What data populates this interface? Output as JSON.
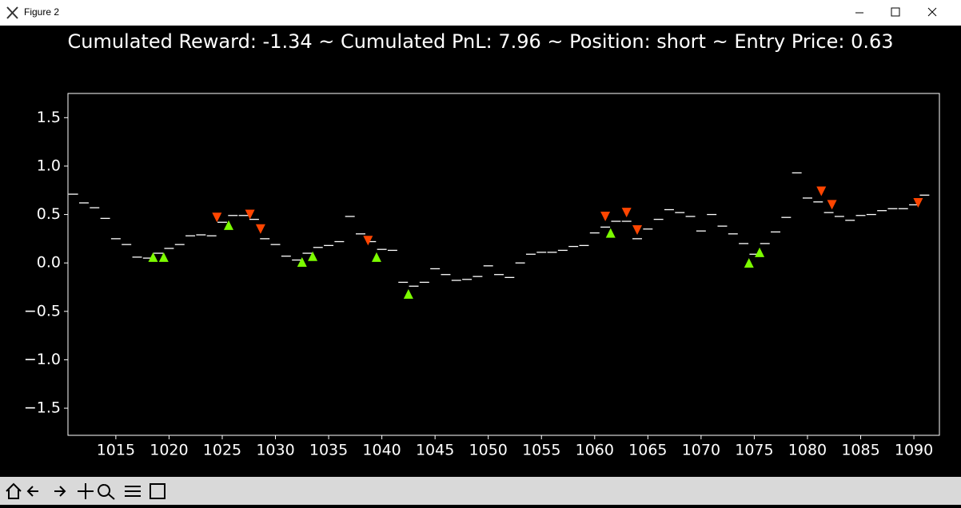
{
  "window": {
    "title": "Figure 2"
  },
  "chart_data": {
    "type": "step-dash",
    "title": "Cumulated Reward: -1.34 ~ Cumulated PnL: 7.96 ~ Position: short ~ Entry Price: 0.63",
    "x": [
      1011,
      1012,
      1013,
      1014,
      1015,
      1016,
      1017,
      1018,
      1019,
      1020,
      1021,
      1022,
      1023,
      1024,
      1025,
      1026,
      1027,
      1028,
      1029,
      1030,
      1031,
      1032,
      1033,
      1034,
      1035,
      1036,
      1037,
      1038,
      1039,
      1040,
      1041,
      1042,
      1043,
      1044,
      1045,
      1046,
      1047,
      1048,
      1049,
      1050,
      1051,
      1052,
      1053,
      1054,
      1055,
      1056,
      1057,
      1058,
      1059,
      1060,
      1061,
      1062,
      1063,
      1064,
      1065,
      1066,
      1067,
      1068,
      1069,
      1070,
      1071,
      1072,
      1073,
      1074,
      1075,
      1076,
      1077,
      1078,
      1079,
      1080,
      1081,
      1082,
      1083,
      1084,
      1085,
      1086,
      1087,
      1088,
      1089,
      1090,
      1091
    ],
    "values": [
      0.71,
      0.62,
      0.57,
      0.46,
      0.25,
      0.19,
      0.06,
      0.05,
      0.1,
      0.15,
      0.19,
      0.28,
      0.29,
      0.28,
      0.42,
      0.49,
      0.49,
      0.45,
      0.25,
      0.19,
      0.07,
      0.03,
      0.1,
      0.16,
      0.18,
      0.22,
      0.48,
      0.3,
      0.22,
      0.14,
      0.13,
      -0.2,
      -0.24,
      -0.2,
      -0.06,
      -0.12,
      -0.18,
      -0.17,
      -0.14,
      -0.03,
      -0.12,
      -0.15,
      0.0,
      0.09,
      0.11,
      0.11,
      0.13,
      0.17,
      0.18,
      0.31,
      0.37,
      0.43,
      0.43,
      0.25,
      0.35,
      0.45,
      0.55,
      0.52,
      0.48,
      0.33,
      0.5,
      0.38,
      0.3,
      0.2,
      0.09,
      0.2,
      0.32,
      0.47,
      0.93,
      0.67,
      0.63,
      0.52,
      0.48,
      0.44,
      0.49,
      0.5,
      0.54,
      0.56,
      0.56,
      0.6,
      0.7
    ],
    "color": "#ffffff",
    "markers": [
      {
        "marker": "triangle-up",
        "color": "#7cfc00",
        "x": [
          1018.5,
          1019.5,
          1025.6,
          1032.5,
          1033.5,
          1039.5,
          1042.5,
          1061.5,
          1074.5,
          1075.5
        ],
        "values": [
          0.06,
          0.06,
          0.39,
          0.01,
          0.07,
          0.06,
          -0.32,
          0.31,
          0.0,
          0.11
        ]
      },
      {
        "marker": "triangle-down",
        "color": "#ff4500",
        "x": [
          1024.5,
          1027.6,
          1028.6,
          1038.7,
          1061.0,
          1063.0,
          1064.0,
          1081.3,
          1082.3,
          1090.4
        ],
        "values": [
          0.47,
          0.5,
          0.35,
          0.23,
          0.48,
          0.52,
          0.34,
          0.74,
          0.6,
          0.62
        ]
      }
    ],
    "xlim": [
      1010.5,
      1092.4
    ],
    "ylim": [
      -1.78,
      1.75
    ],
    "xticks": [
      1015,
      1020,
      1025,
      1030,
      1035,
      1040,
      1045,
      1050,
      1055,
      1060,
      1065,
      1070,
      1075,
      1080,
      1085,
      1090
    ],
    "yticks": [
      {
        "value": -1.5,
        "label": "−1.5"
      },
      {
        "value": -1.0,
        "label": "−1.0"
      },
      {
        "value": -0.5,
        "label": "−0.5"
      },
      {
        "value": 0,
        "label": "0.0"
      },
      0.5,
      {
        "value": 1,
        "label": "1.0"
      },
      1.5
    ]
  }
}
